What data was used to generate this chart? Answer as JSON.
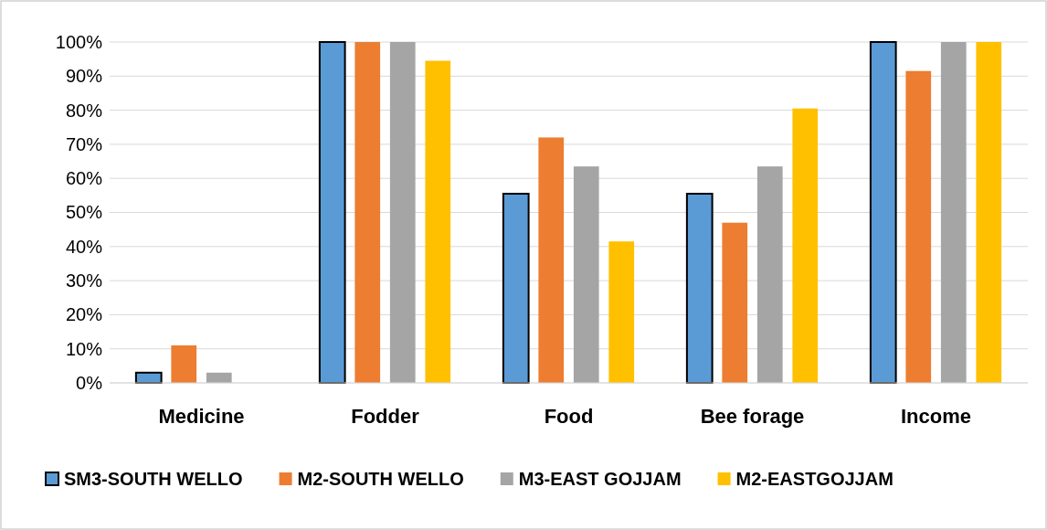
{
  "chart_data": {
    "type": "bar",
    "categories": [
      "Medicine",
      "Fodder",
      "Food",
      "Bee forage",
      "Income"
    ],
    "series": [
      {
        "name": "SM3-SOUTH WELLO",
        "color": "#5b9bd5",
        "values": [
          3,
          100,
          55.5,
          55.5,
          100
        ]
      },
      {
        "name": "M2-SOUTH WELLO",
        "color": "#ed7d31",
        "values": [
          11,
          100,
          72,
          47,
          91.5
        ]
      },
      {
        "name": "M3-EAST GOJJAM",
        "color": "#a5a5a5",
        "values": [
          3,
          100,
          63.5,
          63.5,
          100
        ]
      },
      {
        "name": "M2-EASTGOJJAM",
        "color": "#ffc000",
        "values": [
          0,
          94.5,
          41.5,
          80.5,
          100
        ]
      }
    ],
    "ylim": [
      0,
      100
    ],
    "yticks": [
      {
        "value": 0,
        "label": "0%"
      },
      {
        "value": 10,
        "label": "10%"
      },
      {
        "value": 20,
        "label": "20%"
      },
      {
        "value": 30,
        "label": "30%"
      },
      {
        "value": 40,
        "label": "40%"
      },
      {
        "value": 50,
        "label": "50%"
      },
      {
        "value": 60,
        "label": "60%"
      },
      {
        "value": 70,
        "label": "70%"
      },
      {
        "value": 80,
        "label": "80%"
      },
      {
        "value": 90,
        "label": "90%"
      },
      {
        "value": 100,
        "label": "100%"
      }
    ],
    "grid": "y",
    "legend": "bottom"
  }
}
